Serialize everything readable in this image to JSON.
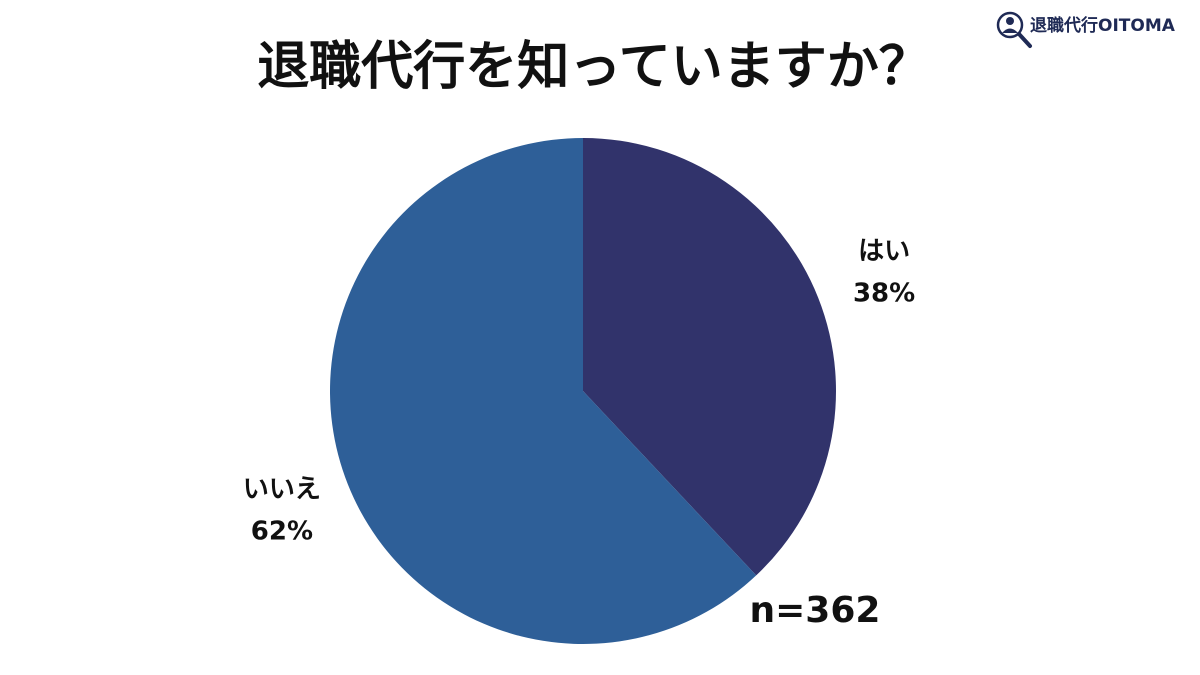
{
  "logo_text": "退職代行OITOMA",
  "chart_data": {
    "type": "pie",
    "title": "退職代行を知っていますか？",
    "categories": [
      "はい",
      "いいえ"
    ],
    "values": [
      38,
      62
    ],
    "value_labels": [
      "38%",
      "62%"
    ],
    "colors": [
      "#31336b",
      "#2e5f98"
    ],
    "annotation": "n=362"
  }
}
